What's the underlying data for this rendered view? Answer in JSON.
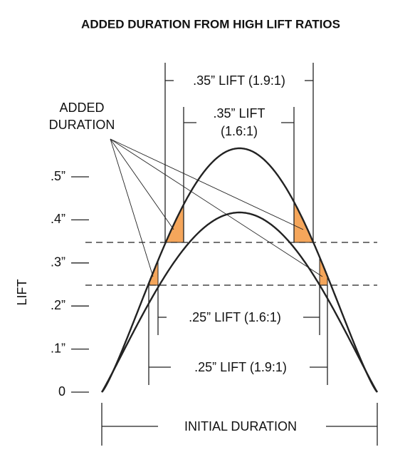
{
  "title": "ADDED DURATION FROM HIGH LIFT RATIOS",
  "y_axis_label": "LIFT",
  "y_tick_labels": [
    "0",
    ".1”",
    ".2”",
    ".3”",
    ".4”",
    ".5”"
  ],
  "added_duration_label": [
    "ADDED",
    "DURATION"
  ],
  "dimensions": {
    "lift_35_high": ".35” LIFT (1.9:1)",
    "lift_35_low": [
      ".35” LIFT",
      "(1.6:1)"
    ],
    "lift_25_low": ".25” LIFT (1.6:1)",
    "lift_25_high": ".25” LIFT (1.9:1)",
    "initial_duration": "INITIAL DURATION"
  }
}
